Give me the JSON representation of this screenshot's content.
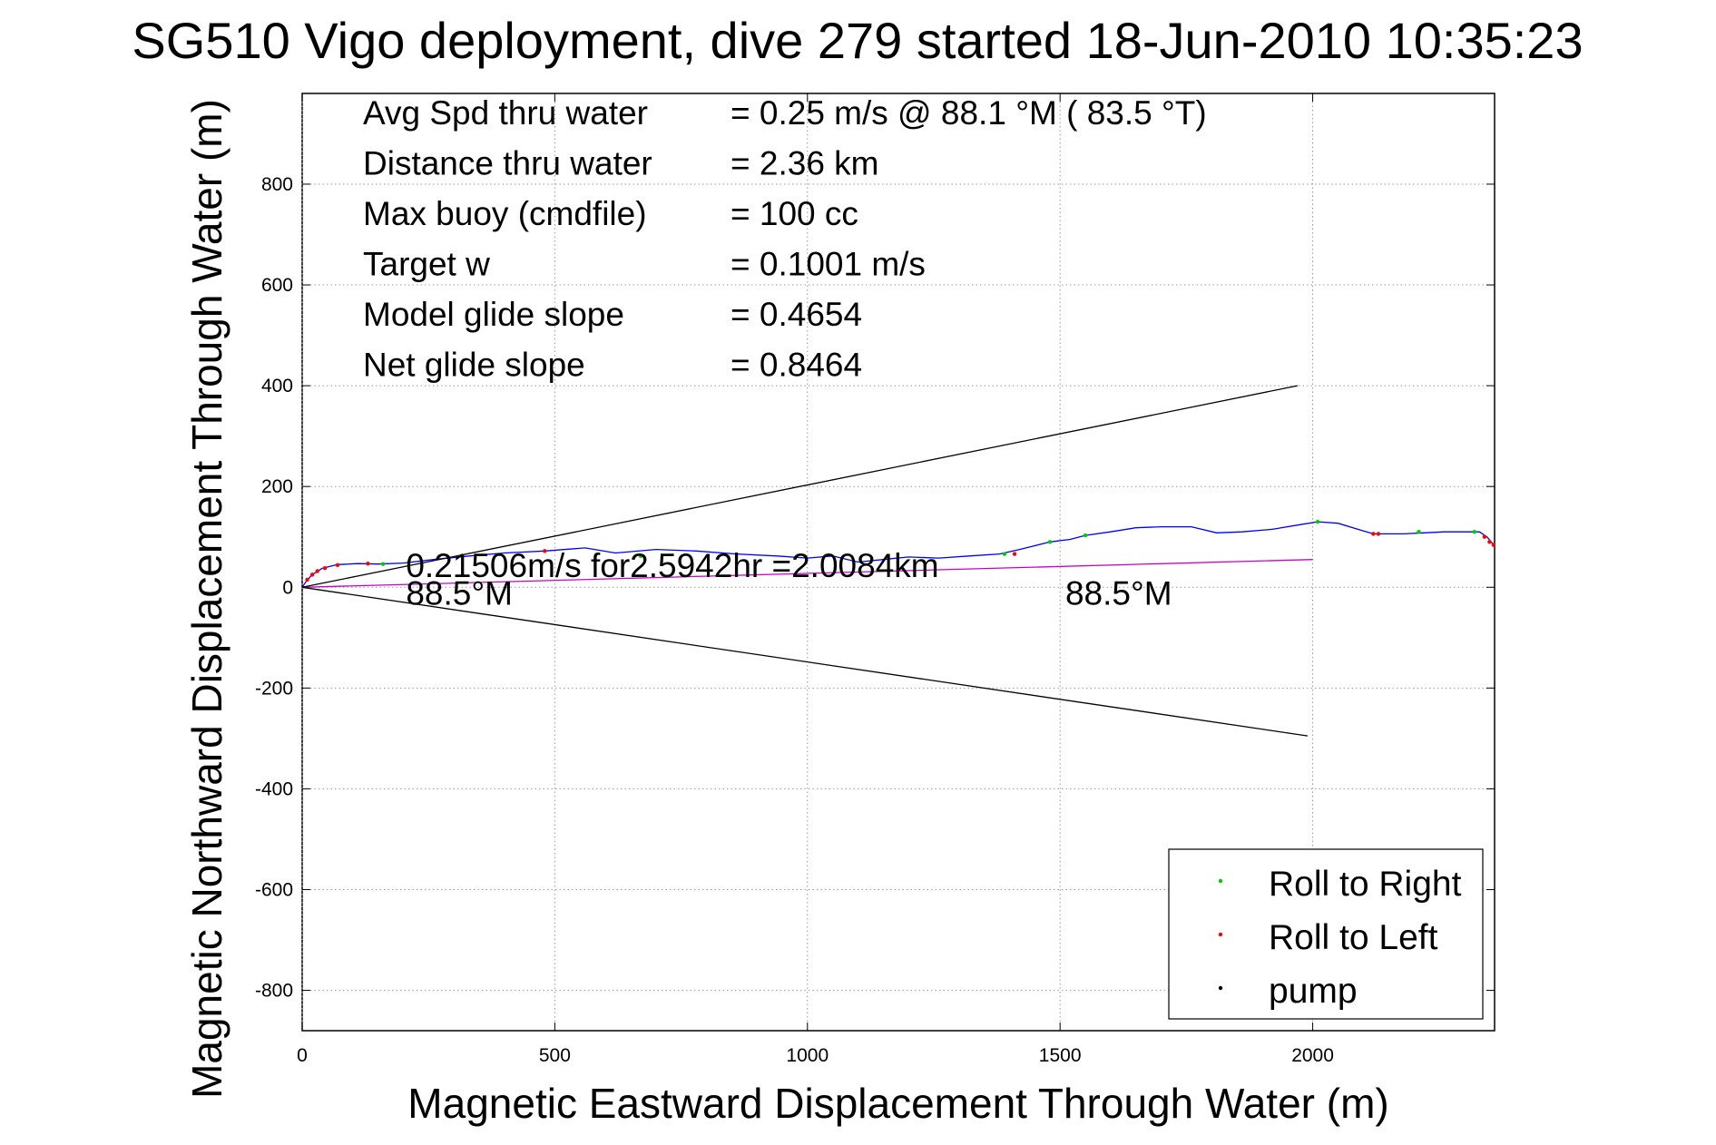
{
  "chart_data": {
    "type": "line",
    "title": "SG510 Vigo deployment, dive 279 started 18-Jun-2010 10:35:23",
    "xlabel": "Magnetic Eastward Displacement Through Water (m)",
    "ylabel": "Magnetic Northward Displacement Through Water (m)",
    "xlim": [
      0,
      2360
    ],
    "ylim": [
      -880,
      980
    ],
    "xticks": [
      0,
      500,
      1000,
      1500,
      2000
    ],
    "yticks": [
      -800,
      -600,
      -400,
      -200,
      0,
      200,
      400,
      600,
      800
    ],
    "grid": true,
    "info_lines": [
      {
        "label": "Avg Spd thru water",
        "value": "=  0.25 m/s @  88.1 °M ( 83.5 °T)"
      },
      {
        "label": "Distance thru water",
        "value": "=  2.36 km"
      },
      {
        "label": "Max buoy (cmdfile)",
        "value": "= 100 cc"
      },
      {
        "label": "Target w",
        "value": "= 0.1001 m/s"
      },
      {
        "label": "Model glide slope",
        "value": "= 0.4654"
      },
      {
        "label": "Net glide slope",
        "value": "= 0.8464"
      }
    ],
    "annotations": [
      {
        "text": "0.21506m/s for2.5942hr =2.0084km",
        "x": 200,
        "y": 20
      },
      {
        "text": "88.5°M",
        "x": 200,
        "y": -35
      },
      {
        "text": "88.5°M",
        "x": 1505,
        "y": -35
      }
    ],
    "series": [
      {
        "color": "#0000ff",
        "x": [
          0,
          8,
          20,
          40,
          70,
          110,
          150,
          200,
          260,
          330,
          400,
          480,
          560,
          620,
          700,
          780,
          860,
          940,
          1000,
          1050,
          1100,
          1150,
          1200,
          1260,
          1320,
          1380,
          1420,
          1480,
          1520,
          1550,
          1600,
          1650,
          1700,
          1760,
          1810,
          1860,
          1920,
          1980,
          2010,
          2050,
          2100,
          2120,
          2140,
          2180,
          2220,
          2260,
          2300,
          2330,
          2345,
          2360
        ],
        "y": [
          0,
          12,
          25,
          38,
          45,
          47,
          46,
          48,
          55,
          62,
          68,
          72,
          78,
          68,
          75,
          72,
          66,
          62,
          58,
          62,
          50,
          55,
          60,
          58,
          62,
          66,
          75,
          90,
          95,
          103,
          110,
          118,
          120,
          120,
          108,
          110,
          115,
          125,
          130,
          127,
          112,
          106,
          106,
          106,
          108,
          110,
          110,
          110,
          100,
          82
        ]
      },
      {
        "color": "#cc00cc",
        "x": [
          0,
          2000
        ],
        "y": [
          0,
          55
        ]
      },
      {
        "color": "#000000",
        "x": [
          0,
          1970
        ],
        "y": [
          0,
          400
        ]
      },
      {
        "color": "#000000",
        "x": [
          0,
          1990
        ],
        "y": [
          0,
          -295
        ]
      }
    ],
    "markers": [
      {
        "color": "#ff0000",
        "x": [
          10,
          20,
          30,
          45,
          70,
          130,
          480,
          1410,
          2120,
          2130,
          2340,
          2350,
          2358
        ],
        "y": [
          15,
          25,
          32,
          38,
          44,
          47,
          72,
          66,
          106,
          106,
          100,
          90,
          84
        ]
      },
      {
        "color": "#00cc00",
        "x": [
          160,
          670,
          1390,
          1480,
          1550,
          2010,
          2210,
          2320
        ],
        "y": [
          46,
          62,
          66,
          90,
          103,
          130,
          110,
          110
        ]
      }
    ],
    "legend": {
      "placement": "bottom-right",
      "entries": [
        {
          "label": "Roll to Right",
          "color": "#00cc00"
        },
        {
          "label": "Roll to Left",
          "color": "#ff0000"
        },
        {
          "label": "pump",
          "color": "#000000"
        }
      ]
    }
  }
}
